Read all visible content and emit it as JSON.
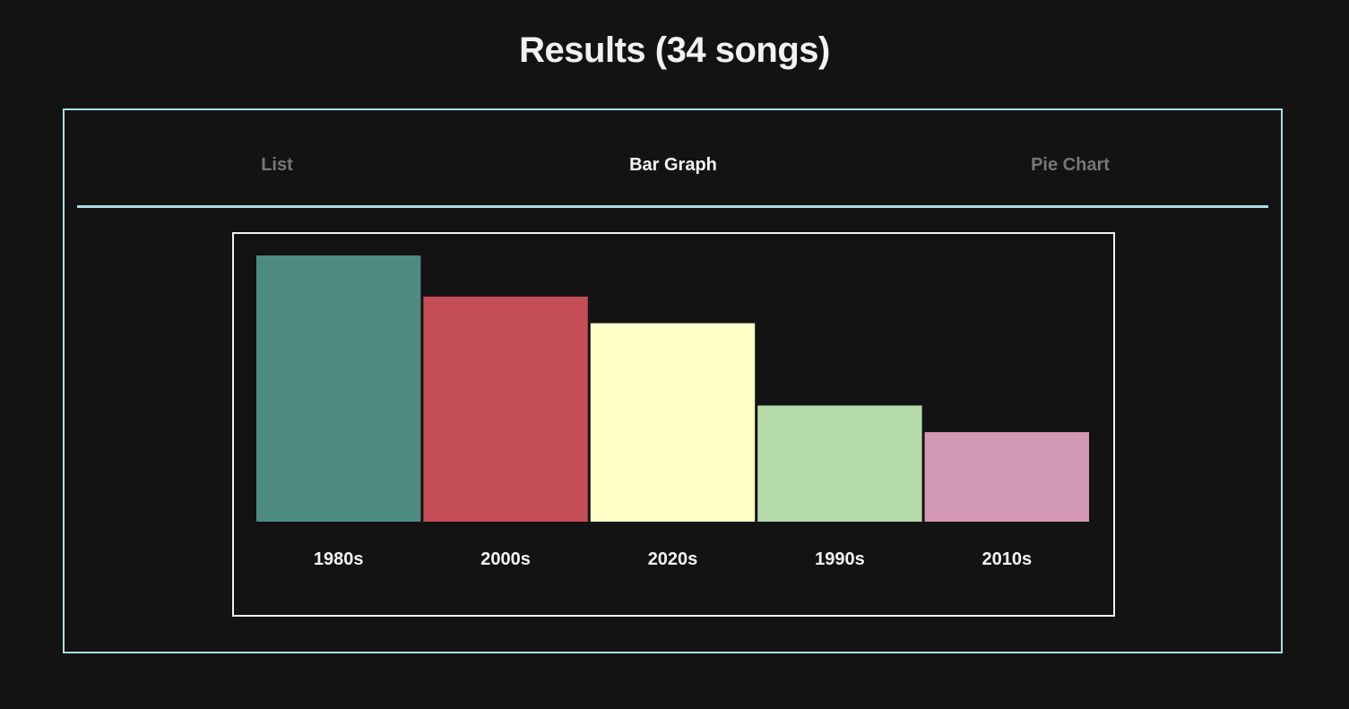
{
  "header": {
    "title": "Results (34 songs)"
  },
  "tabs": [
    {
      "label": "List",
      "active": false
    },
    {
      "label": "Bar Graph",
      "active": true
    },
    {
      "label": "Pie Chart",
      "active": false
    }
  ],
  "colors": {
    "background": "#131313",
    "panel_border": "#a9dde3",
    "chart_border": "#f0f0f0"
  },
  "chart_data": {
    "type": "bar",
    "title": "",
    "xlabel": "",
    "ylabel": "",
    "categories": [
      "1980s",
      "2000s",
      "2020s",
      "1990s",
      "2010s"
    ],
    "values": [
      11,
      9.3,
      8.2,
      4.8,
      3.7
    ],
    "colors": [
      "#4d8a82",
      "#c44d56",
      "#ffffc8",
      "#b5dba8",
      "#d49ab5"
    ],
    "ylim": [
      0,
      11
    ],
    "grid": false,
    "legend": "none"
  }
}
